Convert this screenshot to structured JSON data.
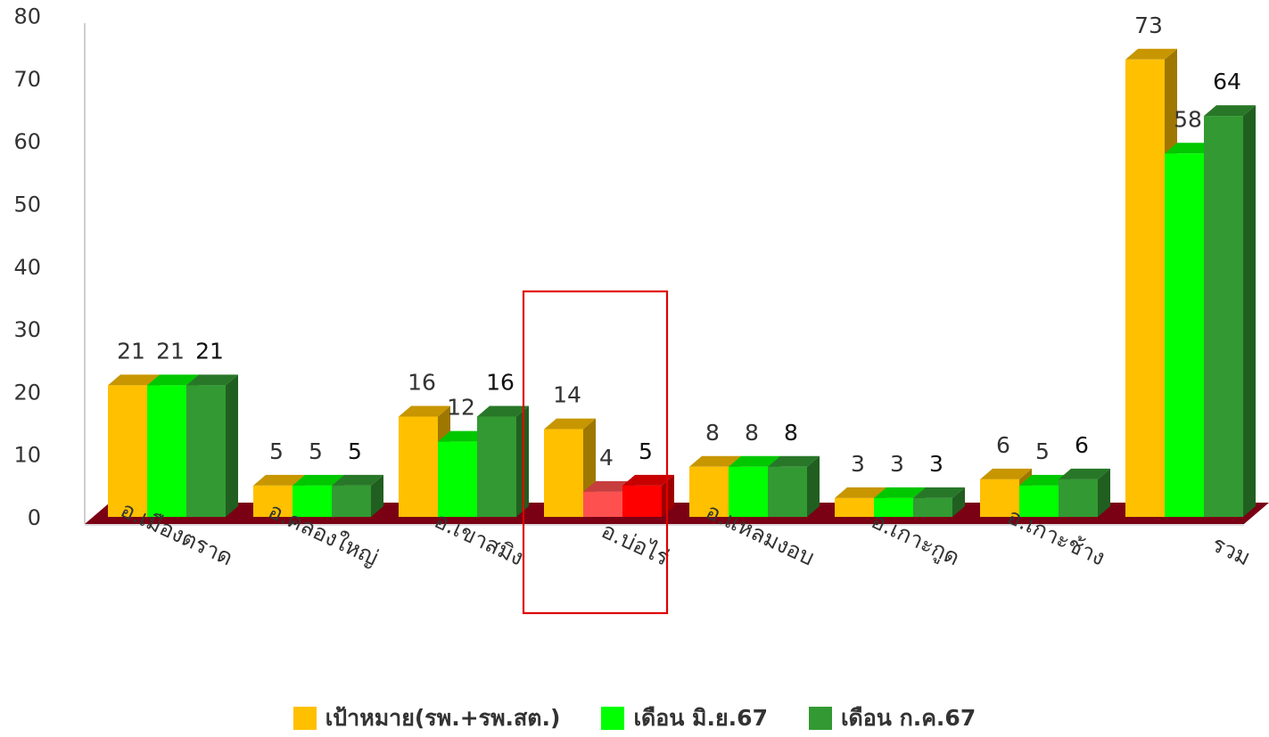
{
  "chart_data": {
    "type": "bar",
    "title": "",
    "xlabel": "",
    "ylabel": "",
    "ylim": [
      0,
      80
    ],
    "yticks": [
      0,
      10,
      20,
      30,
      40,
      50,
      60,
      70,
      80
    ],
    "grid": false,
    "legend_position": "bottom",
    "categories": [
      "อ.เมืองตราด",
      "อ.คลองใหญ่",
      "อ.เขาสมิง",
      "อ.บ่อไร่",
      "อ.แหลมงอบ",
      "อ.เกาะกูด",
      "อ.เกาะช้าง",
      "รวม"
    ],
    "series": [
      {
        "name": "เป้าหมาย(รพ.+รพ.สต.)",
        "color": "#FFC000",
        "values": [
          21,
          5,
          16,
          14,
          8,
          3,
          6,
          73
        ]
      },
      {
        "name": "เดือน มิ.ย.67",
        "color": "#00FF00",
        "values": [
          21,
          5,
          12,
          4,
          8,
          3,
          5,
          58
        ]
      },
      {
        "name": "เดือน ก.ค.67",
        "color": "#339933",
        "values": [
          21,
          5,
          16,
          5,
          8,
          3,
          6,
          64
        ]
      }
    ],
    "highlight": {
      "category": "อ.บ่อไร่",
      "box_color": "#E00000",
      "bar_colors": [
        "#FFC000",
        "#FF5050",
        "#FF0000"
      ]
    },
    "floor_color": "#7A0014"
  }
}
